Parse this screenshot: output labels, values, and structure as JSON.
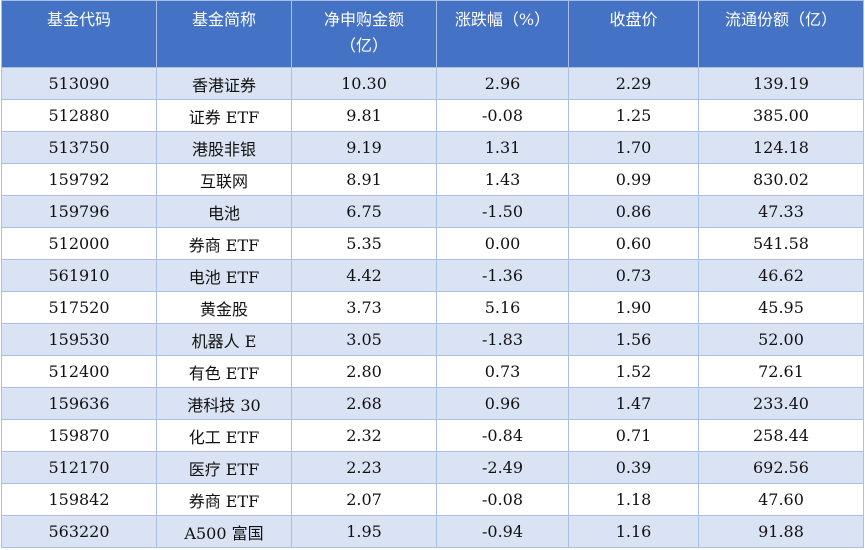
{
  "table": {
    "header": [
      "基金代码",
      "基金简称",
      "净申购金额（亿）",
      "涨跌幅（%）",
      "收盘价",
      "流通份额（亿）"
    ],
    "rows": [
      [
        "513090",
        "香港证券",
        "10.30",
        "2.96",
        "2.29",
        "139.19"
      ],
      [
        "512880",
        "证券 ETF",
        "9.81",
        "-0.08",
        "1.25",
        "385.00"
      ],
      [
        "513750",
        "港股非银",
        "9.19",
        "1.31",
        "1.70",
        "124.18"
      ],
      [
        "159792",
        "互联网",
        "8.91",
        "1.43",
        "0.99",
        "830.02"
      ],
      [
        "159796",
        "电池",
        "6.75",
        "-1.50",
        "0.86",
        "47.33"
      ],
      [
        "512000",
        "券商 ETF",
        "5.35",
        "0.00",
        "0.60",
        "541.58"
      ],
      [
        "561910",
        "电池 ETF",
        "4.42",
        "-1.36",
        "0.73",
        "46.62"
      ],
      [
        "517520",
        "黄金股",
        "3.73",
        "5.16",
        "1.90",
        "45.95"
      ],
      [
        "159530",
        "机器人 E",
        "3.05",
        "-1.83",
        "1.56",
        "52.00"
      ],
      [
        "512400",
        "有色 ETF",
        "2.80",
        "0.73",
        "1.52",
        "72.61"
      ],
      [
        "159636",
        "港科技 30",
        "2.68",
        "0.96",
        "1.47",
        "233.40"
      ],
      [
        "159870",
        "化工 ETF",
        "2.32",
        "-0.84",
        "0.71",
        "258.44"
      ],
      [
        "512170",
        "医疗 ETF",
        "2.23",
        "-2.49",
        "0.39",
        "692.56"
      ],
      [
        "159842",
        "券商 ETF",
        "2.07",
        "-0.08",
        "1.18",
        "47.60"
      ],
      [
        "563220",
        "A500 富国",
        "1.95",
        "-0.94",
        "1.16",
        "91.88"
      ]
    ]
  }
}
